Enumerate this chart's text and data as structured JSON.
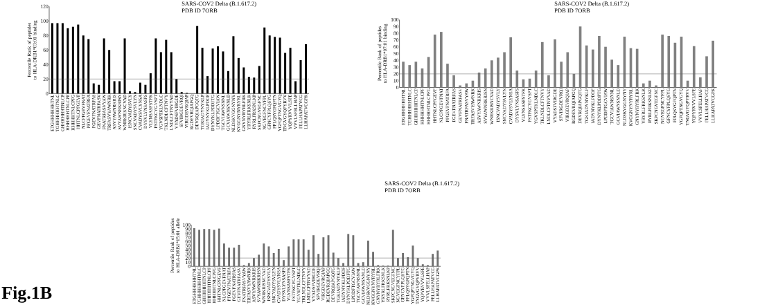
{
  "chart_data": [
    {
      "type": "bar",
      "title": "SARS-COV2 Delta (B.1.617.2)",
      "subtitle": "PDB ID 7ORB",
      "ylabel": "Percentile Rank of peptides to HLA-DRB1*03:01 binding",
      "color": "#000000",
      "categories": [
        "ETGHHHHHHTNL",
        "TGHHHHHHTNLC",
        "GHHHHHHTNLCP",
        "HHHHHHTNLCPF",
        "HHHHHTNLCPFG",
        "HHTNLCPFGEVF",
        "NLCPFGEVFNAT",
        "PFGEVFNATRFA",
        "FGEVFNATRFAS",
        "GEVFNATRFASV",
        "FNATRFASVYAW",
        "TRFASVYAWNRK",
        "ASVYAWNRKRIS",
        "SVYAWNRKRISN",
        "WNRKRISNCVAD",
        "ISNCVADYSVLY",
        "SNCVADYSVLYN",
        "CVADYSVLYNSA",
        "DYSVLYNSASFS",
        "VLYNSASFSTFK",
        "FSTFKCYGVSPT",
        "YGVSPTKLNDLC",
        "TKLNDLCFTNVY",
        "LNDLCFTNVYAD",
        "VYADSFVIRGDE",
        "SFVIRGDEVRQI",
        "VIRGDEVRQIAP",
        "RGDEVRQIAPGQ",
        "DEVRQIAPGQTG",
        "TGKIADYNYKLP",
        "IADYNYKLPDDF",
        "DYNYKLPDDFTG",
        "LPDDFTGCVIAW",
        "TGCVIAWNSNNL",
        "GCVIAWNSNNLD",
        "NLDSKVGGNYNY",
        "KVGGNYNYRYRL",
        "GNYNYRYRLFRK",
        "YRYRLFRKSNLK",
        "RYRLFRKSNLKP",
        "SKPCNGVEGFNC",
        "NGVEGFNCYFPL",
        "GFNCYFPLQSYG",
        "FPLQSYGFQPTN",
        "YGFQPTNGVGYQ",
        "TNGVGYQPYRVV",
        "YQPYRVVVLSFE",
        "VVVLSFELLHAP",
        "FELLHAPATVCG",
        "LLHAPATVCGPK"
      ],
      "values": [
        97,
        97,
        97,
        90,
        92,
        95,
        80,
        75,
        14,
        12,
        76,
        60,
        17,
        17,
        76,
        3,
        2,
        15,
        12,
        28,
        76,
        57,
        74,
        57,
        20,
        2,
        1,
        0,
        93,
        63,
        24,
        62,
        65,
        58,
        31,
        79,
        49,
        36,
        23,
        22,
        38,
        91,
        80,
        78,
        77,
        56,
        63,
        17,
        46,
        68
      ],
      "ylim": [
        0,
        120
      ],
      "yticks": [
        0,
        20,
        40,
        60,
        80,
        100,
        120
      ],
      "ref_lines": [
        {
          "axis": "y",
          "value": 20,
          "color": "#606060"
        }
      ]
    },
    {
      "type": "bar",
      "title": "SARS-COV2 Delta (B.1.617.2)",
      "subtitle": "PDB ID 7ORB",
      "ylabel": "Percentile Rank of peptides to HLA-DRB1*07:01 binding",
      "color": "#808080",
      "categories": [
        "ETGHHHHHHTNL",
        "TGHHHHHHTNLC",
        "GHHHHHHTNLCP",
        "HHHHHHTNLCPF",
        "HHHHHTNLCPFG",
        "HHTNLCPFGEVF",
        "NLCPFGEVFNAT",
        "PFGEVFNATRFA",
        "FGEVFNATRFAS",
        "GEVFNATRFASV",
        "FNATRFASVYAW",
        "TRFASVYAWNRK",
        "ASVYAWNRKRIS",
        "SVYAWNRKRISN",
        "WNRKRISNCVAD",
        "ISNCVADYSVLY",
        "SNCVADYSVLYN",
        "CVADYSVLYNSA",
        "DYSVLYNSASFS",
        "VLYNSASFSTFK",
        "FSTFKCYGVSPT",
        "YGVSPTKLNDLC",
        "TKLNDLCFTNVY",
        "LNDLCFTNVYAD",
        "VYADSFVIRGDE",
        "SFVIRGDEVRQI",
        "VIRGDEVRQIAP",
        "RGDEVRQIAPGQ",
        "DEVRQIAPGQTG",
        "TGKIADYNYKLP",
        "IADYNYKLPDDF",
        "DYNYKLPDDFTG",
        "LPDDFTGCVIAW",
        "TGCVIAWNSNNL",
        "GCVIAWNSNNLD",
        "NLDSKVGGNYNY",
        "KVGGNYNYRYRL",
        "GNYNYRYRLFRK",
        "YRYRLFRKSNLK",
        "RYRLFRKSNLKP",
        "SKPCNGVEGFNC",
        "NGVEGFNCYFPL",
        "GFNCYFPLQSYG",
        "FPLQSYGFQPTN",
        "YGFQPTNGVGYQ",
        "TNGVGYQPYRVV",
        "YQPYRVVVLSFE",
        "VVVLSFELLHAP",
        "FELLHAPATVCG",
        "LLHAPATVCGPK"
      ],
      "values": [
        38,
        33,
        38,
        28,
        45,
        78,
        82,
        35,
        18,
        3,
        6,
        10,
        22,
        28,
        40,
        44,
        52,
        74,
        25,
        12,
        13,
        25,
        67,
        18,
        71,
        38,
        52,
        20,
        90,
        62,
        56,
        76,
        60,
        41,
        33,
        75,
        58,
        57,
        6,
        10,
        3,
        78,
        76,
        66,
        75,
        10,
        61,
        15,
        46,
        69
      ],
      "ylim": [
        0,
        100
      ],
      "yticks": [
        0,
        10,
        20,
        30,
        40,
        50,
        60,
        70,
        80,
        90,
        100
      ],
      "ref_lines": [
        {
          "axis": "y",
          "value": 20,
          "color": "#606060"
        }
      ]
    },
    {
      "type": "bar",
      "title": "SARS-COV2 Delta (B.1.617.2)",
      "subtitle": "PDB ID 7ORB",
      "ylabel": "Percentile Rank of peptides to HLA-DRB1*15:01 allele",
      "color": "#707070",
      "categories": [
        "ETGHHHHHHTNL",
        "TGHHHHHHTNLC",
        "GHHHHHHTNLCP",
        "HHHHHHTNLCPF",
        "HHHHHTNLCPFG",
        "HHTNLCPFGEVF",
        "NLCPFGEVFNAT",
        "PFGEVFNATRFA",
        "FGEVFNATRFAS",
        "GEVFNATRFASV",
        "FNATRFASVYAW",
        "TRFASVYAWNRK",
        "ASVYAWNRKRIS",
        "SVYAWNRKRISN",
        "WNRKRISNCVAD",
        "ISNCVADYSVLY",
        "SNCVADYSVLYN",
        "CVADYSVLYNSA",
        "DYSVLYNSASFS",
        "VLYNSASFSTFK",
        "FSTFKCYGVSPT",
        "YGVSPTKLNDLC",
        "TKLNDLCFTNVY",
        "LNDLCFTNVYAD",
        "VYADSFVIRGDE",
        "SFVIRGDEVRQI",
        "VIRGDEVRQIAP",
        "RGDEVRQIAPGQ",
        "DEVRQIAPGQTG",
        "TGKIADYNYKLP",
        "IADYNYKLPDDF",
        "DYNYKLPDDFTG",
        "LPDDFTGCVIAW",
        "TGCVIAWNSNNL",
        "GCVIAWNSNNLD",
        "NLDSKVGGNYNY",
        "KVGGNYNYRYRL",
        "GNYNYRYRLFRK",
        "YRYRLFRKSNLK",
        "RYRLFRKSNLKP",
        "SKPCNGVEGFNC",
        "NGVEGFNCYFPL",
        "GFNCYFPLQSYG",
        "FPLQSYGFQPTN",
        "YGFQPTNGVGYQ",
        "TNGVGYQPYRVV",
        "YQPYRVVVLSFE",
        "VVVLSFELLHAP",
        "FELLHAPATVCG",
        "LLHAPATVCGPK"
      ],
      "values": [
        92,
        88,
        90,
        90,
        88,
        91,
        55,
        45,
        45,
        52,
        3,
        8,
        20,
        28,
        55,
        48,
        32,
        42,
        15,
        48,
        65,
        65,
        65,
        40,
        75,
        30,
        70,
        75,
        33,
        20,
        8,
        78,
        75,
        8,
        10,
        62,
        35,
        3,
        2,
        2,
        88,
        20,
        32,
        22,
        50,
        20,
        5,
        3,
        30,
        38
      ],
      "ylim": [
        0,
        100
      ],
      "yticks": [
        0,
        10,
        20,
        30,
        40,
        50,
        60,
        70,
        80,
        90,
        100
      ],
      "ref_lines": [
        {
          "axis": "y",
          "value": 20,
          "color": "#606060"
        }
      ],
      "annotations": [
        "Fig.1B"
      ]
    }
  ]
}
